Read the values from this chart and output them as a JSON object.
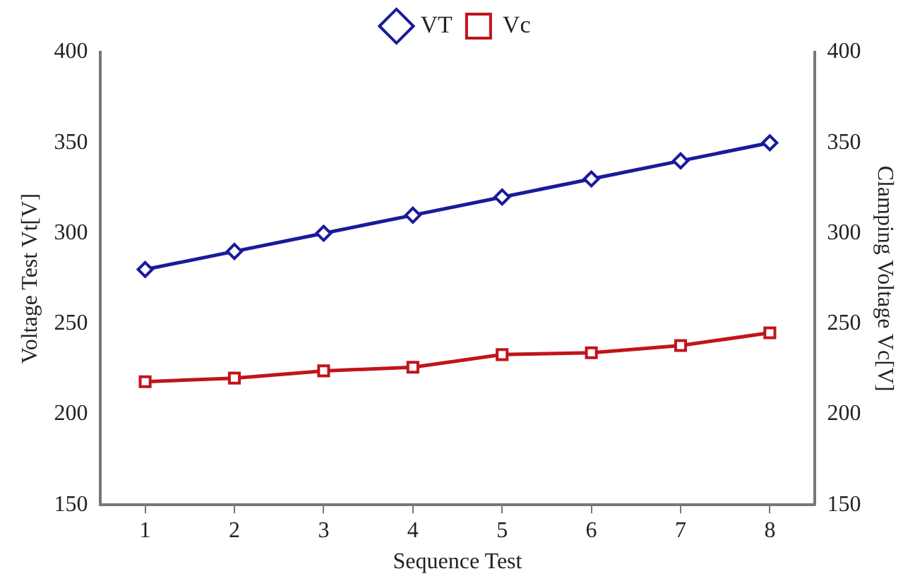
{
  "chart_data": {
    "type": "line",
    "xlabel": "Sequence Test",
    "ylabel": "Voltage Test Vt[V]",
    "y2label": "Clamping Voltage Vc[V]",
    "categories": [
      "1",
      "2",
      "3",
      "4",
      "5",
      "6",
      "7",
      "8"
    ],
    "series": [
      {
        "name": "VT",
        "color": "#1a1a9a",
        "marker": "diamond",
        "values": [
          280,
          290,
          300,
          310,
          320,
          330,
          340,
          350
        ]
      },
      {
        "name": "Vc",
        "color": "#c0141c",
        "marker": "square",
        "values": [
          218,
          220,
          224,
          226,
          233,
          234,
          238,
          245
        ]
      }
    ],
    "ylim": [
      150,
      400
    ],
    "yticks": [
      150,
      200,
      250,
      300,
      350,
      400
    ],
    "y2lim": [
      150,
      400
    ],
    "y2ticks": [
      150,
      200,
      250,
      300,
      350,
      400
    ],
    "grid": false,
    "legend": "top",
    "line_style": "solid"
  }
}
